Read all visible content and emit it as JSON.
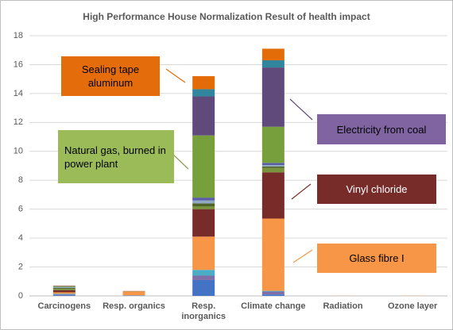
{
  "chart_data": {
    "type": "stacked_bar",
    "title": "High Performance House Normalization Result of health impact",
    "categories": [
      "Carcinogens",
      "Resp. organics",
      "Resp. inorganics",
      "Climate change",
      "Radiation",
      "Ozone layer"
    ],
    "series": [
      {
        "color": "#4472c4",
        "values": [
          0.05,
          0.02,
          1.1,
          0.1,
          0,
          0
        ]
      },
      {
        "color": "#7f6fa8",
        "values": [
          0.05,
          0.01,
          0.3,
          0.2,
          0,
          0
        ]
      },
      {
        "color": "#4bacc6",
        "values": [
          0.05,
          0.01,
          0.4,
          0.05,
          0,
          0
        ]
      },
      {
        "color": "#f79646",
        "values": [
          0.1,
          0.25,
          2.3,
          5.0,
          0.01,
          0.01
        ]
      },
      {
        "color": "#772c2a",
        "values": [
          0.15,
          0.01,
          1.9,
          3.2,
          0,
          0
        ]
      },
      {
        "color": "#77933c",
        "values": [
          0.1,
          0.01,
          0.2,
          0.3,
          0,
          0
        ]
      },
      {
        "color": "#4f6228",
        "values": [
          0.05,
          0,
          0.2,
          0.1,
          0,
          0
        ]
      },
      {
        "color": "#8ea9c1",
        "values": [
          0.05,
          0,
          0.2,
          0.1,
          0,
          0
        ]
      },
      {
        "color": "#5b5ea6",
        "values": [
          0.02,
          0,
          0.2,
          0.15,
          0,
          0
        ]
      },
      {
        "color": "#77a03c",
        "values": [
          0.05,
          0.01,
          4.3,
          2.5,
          0,
          0
        ]
      },
      {
        "color": "#604a7b",
        "values": [
          0.02,
          0,
          2.7,
          4.1,
          0,
          0
        ]
      },
      {
        "color": "#31859c",
        "values": [
          0.01,
          0,
          0.5,
          0.5,
          0,
          0
        ]
      },
      {
        "color": "#e36c09",
        "values": [
          0.02,
          0.02,
          0.9,
          0.8,
          0,
          0
        ]
      }
    ],
    "ylim": [
      0,
      18
    ],
    "yticks": [
      0,
      2,
      4,
      6,
      8,
      10,
      12,
      14,
      16,
      18
    ],
    "grid": true,
    "annotations": [
      {
        "text": "Sealing tape aluminum",
        "color": "#e46c0a"
      },
      {
        "text": "Natural gas, burned in power plant",
        "color": "#9bbb59"
      },
      {
        "text": "Electricity from coal",
        "color": "#8064a2"
      },
      {
        "text": "Vinyl chloride",
        "color": "#772c2a"
      },
      {
        "text": "Glass fibre I",
        "color": "#f79646"
      }
    ]
  }
}
